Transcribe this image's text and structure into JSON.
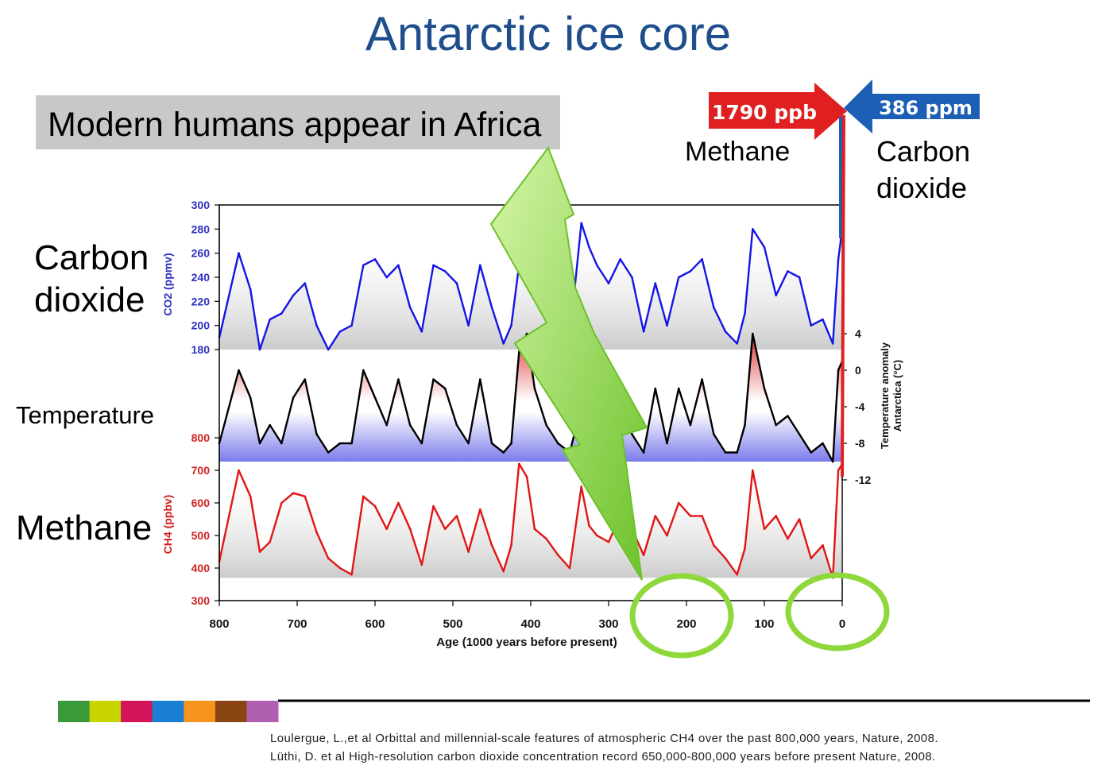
{
  "slide": {
    "title": "Antarctic ice core",
    "callout": "Modern humans appear in Africa",
    "labels": {
      "co2": [
        "Carbon",
        "dioxide"
      ],
      "temperature": "Temperature",
      "methane": "Methane",
      "methane_top": "Methane",
      "co2_top": [
        "Carbon",
        "dioxide"
      ]
    },
    "arrows": {
      "methane": "1790 ppb",
      "co2": "386 ppm"
    },
    "references": [
      "Loulergue, L.,et al Orbittal and millennial-scale features of atmospheric CH4 over the past 800,000 years, Nature, 2008.",
      "Lüthi, D. et al High-resolution carbon dioxide concentration record 650,000-800,000 years before present Nature, 2008."
    ],
    "colors": {
      "title": "#1f4e8c",
      "co2": "#1414e6",
      "temperature": "#000000",
      "methane": "#e21414",
      "arrow_red": "#e02020",
      "arrow_blue": "#1c5fb4",
      "lightning": "#8ed83c",
      "highlight_ring": "#8ed83c",
      "footer_strip": [
        "#3a9a3a",
        "#c8d400",
        "#d4145a",
        "#1a7fd4",
        "#f7941d",
        "#8b4513",
        "#b05fb0"
      ]
    }
  },
  "chart_data": {
    "type": "line",
    "x": [
      800,
      775,
      760,
      748,
      735,
      720,
      705,
      690,
      675,
      660,
      645,
      630,
      615,
      600,
      585,
      570,
      555,
      540,
      525,
      510,
      495,
      480,
      465,
      450,
      435,
      425,
      415,
      405,
      395,
      380,
      365,
      350,
      335,
      325,
      315,
      300,
      285,
      270,
      255,
      240,
      225,
      210,
      195,
      180,
      165,
      150,
      135,
      125,
      115,
      100,
      85,
      70,
      55,
      40,
      25,
      12,
      5,
      0
    ],
    "series": [
      {
        "values": [
          190,
          260,
          230,
          180,
          205,
          210,
          225,
          235,
          200,
          180,
          195,
          200,
          250,
          255,
          240,
          250,
          215,
          195,
          250,
          245,
          235,
          200,
          250,
          215,
          185,
          200,
          250,
          265,
          240,
          230,
          200,
          190,
          285,
          265,
          250,
          235,
          255,
          240,
          195,
          235,
          200,
          240,
          245,
          255,
          215,
          195,
          185,
          210,
          280,
          265,
          225,
          245,
          240,
          200,
          205,
          185,
          255,
          280
        ],
        "unit": "ppmv"
      },
      {
        "values": [
          -8,
          0,
          -3,
          -8,
          -6,
          -8,
          -3,
          -1,
          -7,
          -9,
          -8,
          -8,
          0,
          -3,
          -6,
          -1,
          -6,
          -8,
          -1,
          -2,
          -6,
          -8,
          -1,
          -8,
          -9,
          -8,
          2,
          4,
          -2,
          -6,
          -8,
          -9,
          -4,
          -8,
          -6,
          -8,
          -2,
          -7,
          -9,
          -2,
          -8,
          -2,
          -6,
          -1,
          -7,
          -9,
          -9,
          -6,
          4,
          -2,
          -6,
          -5,
          -7,
          -9,
          -8,
          -10,
          0,
          1
        ],
        "unit": "°C"
      },
      {
        "values": [
          420,
          700,
          620,
          450,
          480,
          600,
          630,
          620,
          510,
          430,
          400,
          380,
          620,
          590,
          520,
          600,
          520,
          410,
          590,
          520,
          560,
          450,
          580,
          470,
          390,
          470,
          720,
          680,
          520,
          490,
          440,
          400,
          650,
          530,
          500,
          480,
          560,
          520,
          440,
          560,
          500,
          600,
          560,
          560,
          470,
          430,
          380,
          460,
          700,
          520,
          560,
          490,
          550,
          430,
          470,
          370,
          700,
          720
        ],
        "unit": "ppbv"
      }
    ],
    "xlabel": "Age (1000 years before present)",
    "xticks": [
      800,
      700,
      600,
      500,
      400,
      300,
      200,
      100,
      0
    ],
    "xlim": [
      800,
      0
    ],
    "axes": {
      "co2": {
        "ylabel": "CO2 (ppmv)",
        "ticks": [
          300,
          280,
          260,
          240,
          220,
          200,
          180
        ],
        "ylim": [
          180,
          300
        ]
      },
      "temperature": {
        "ylabel": [
          "Temperature anomaly",
          "Antarctica (°C)"
        ],
        "ticks": [
          4,
          0,
          -4,
          -8,
          -12
        ],
        "ylim": [
          -12,
          4
        ]
      },
      "methane": {
        "ylabel": "CH4 (ppbv)",
        "ticks": [
          800,
          700,
          600,
          500,
          400,
          300
        ],
        "ylim": [
          300,
          800
        ]
      }
    },
    "present_day": {
      "methane": 1790,
      "co2": 386
    },
    "highlighted_ages": [
      200,
      0
    ],
    "grid": false,
    "legend": "none"
  }
}
